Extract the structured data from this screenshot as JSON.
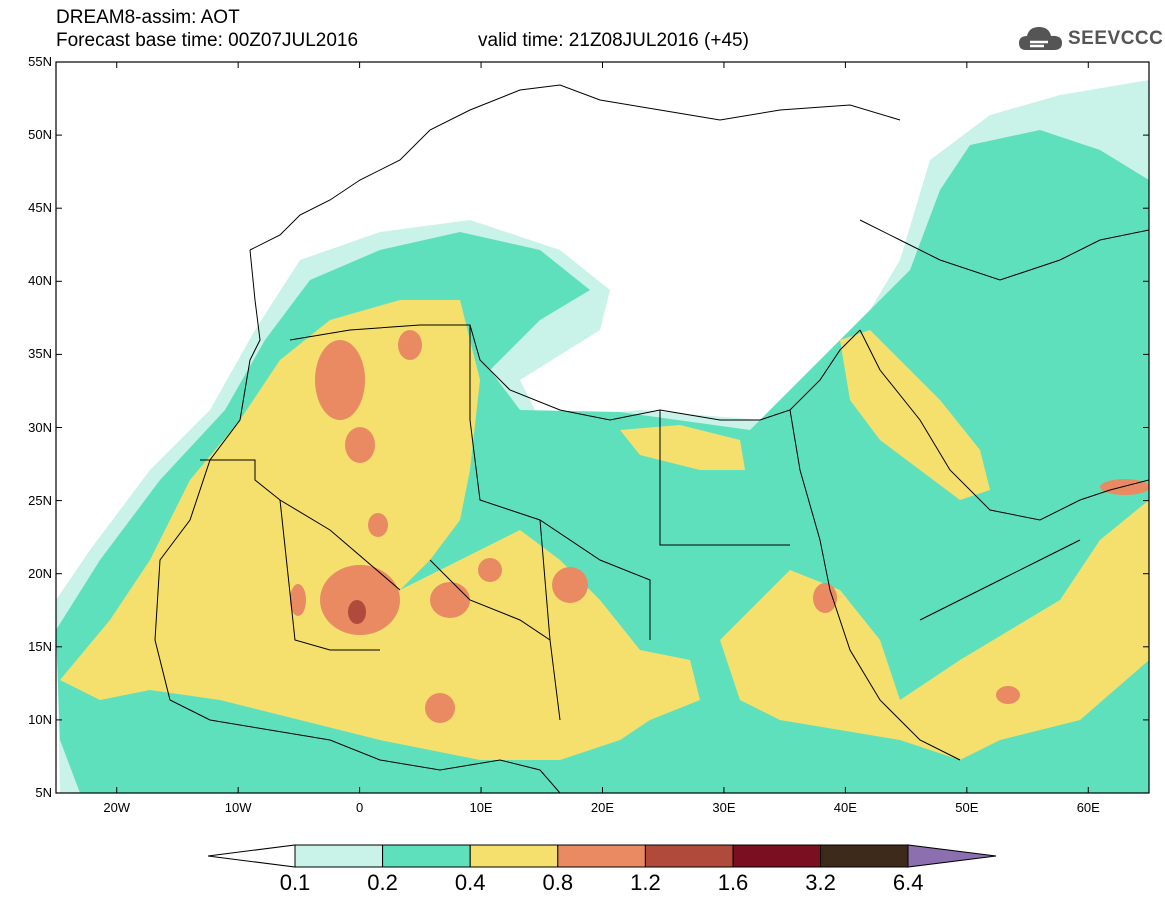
{
  "header": {
    "title": "DREAM8-assim: AOT",
    "base_time": "Forecast base time: 00Z07JUL2016",
    "valid_time": "valid time: 21Z08JUL2016 (+45)"
  },
  "logo": {
    "text": "SEEVCCC",
    "icon": "cloud-icon"
  },
  "map": {
    "lat_labels": [
      "55N",
      "50N",
      "45N",
      "40N",
      "35N",
      "30N",
      "25N",
      "20N",
      "15N",
      "10N",
      "5N"
    ],
    "lon_labels": [
      "20W",
      "10W",
      "0",
      "10E",
      "20E",
      "30E",
      "40E",
      "50E",
      "60E"
    ],
    "lon_range": [
      -25,
      65
    ],
    "lat_range": [
      5,
      55
    ]
  },
  "colorbar": {
    "levels": [
      "0.1",
      "0.2",
      "0.4",
      "0.8",
      "1.2",
      "1.6",
      "3.2",
      "6.4"
    ],
    "colors": [
      "#ffffff",
      "#c9f2e8",
      "#5fe0bd",
      "#f5e06e",
      "#e98a63",
      "#b04a3a",
      "#7a0f22",
      "#3e2a1a",
      "#8c6fae"
    ]
  }
}
